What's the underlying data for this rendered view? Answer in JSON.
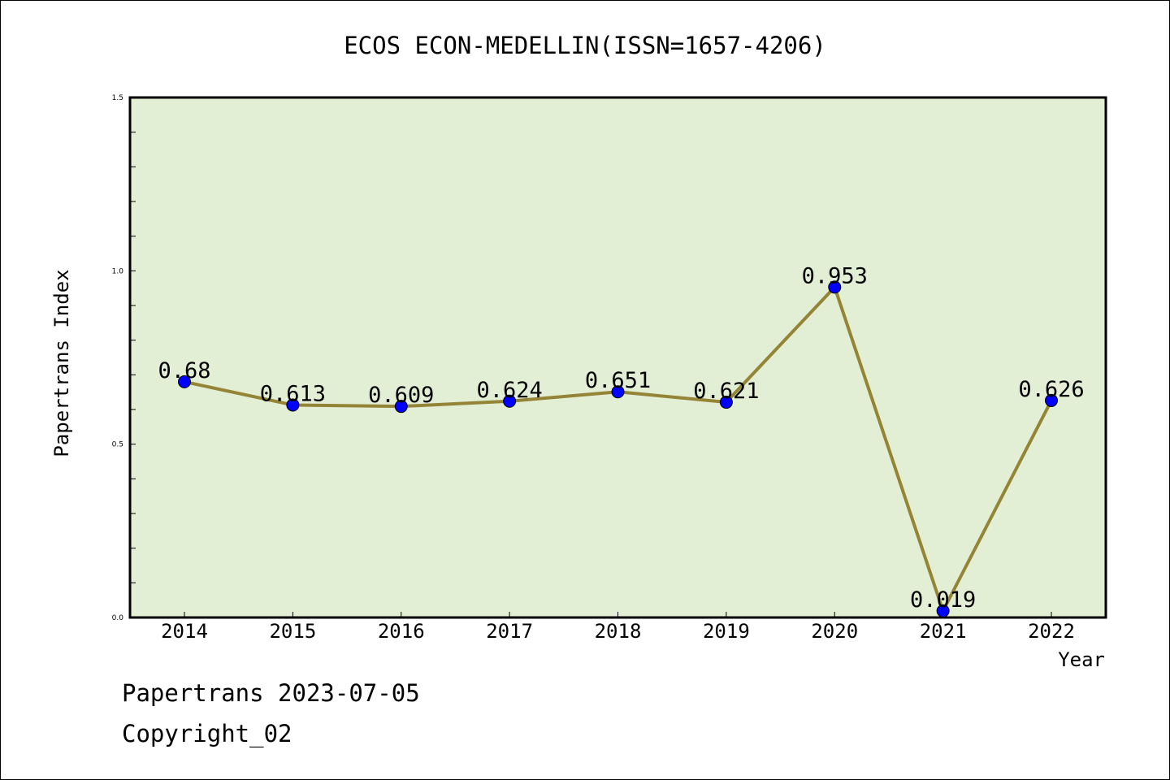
{
  "chart_data": {
    "type": "line",
    "title": "ECOS ECON-MEDELLIN(ISSN=1657-4206)",
    "xlabel": "Year",
    "ylabel": "Papertrans Index",
    "categories": [
      "2014",
      "2015",
      "2016",
      "2017",
      "2018",
      "2019",
      "2020",
      "2021",
      "2022"
    ],
    "series": [
      {
        "values": [
          0.68,
          0.613,
          0.609,
          0.624,
          0.651,
          0.621,
          0.953,
          0.019,
          0.626
        ],
        "labels": [
          "0.68",
          "0.613",
          "0.609",
          "0.624",
          "0.651",
          "0.621",
          "0.953",
          "0.019",
          "0.626"
        ]
      }
    ],
    "ylim": [
      0,
      1.5
    ],
    "y_ticks": [
      "0.0",
      "0.5",
      "1.0",
      "1.5"
    ],
    "grid": false,
    "colors": {
      "plot_background": "#e2efd5",
      "line": "#948435",
      "marker": "#0000ff",
      "axis": "#000000"
    }
  },
  "footer": {
    "date_text": "Papertrans 2023-07-05",
    "copyright_text": "Copyright_02"
  }
}
